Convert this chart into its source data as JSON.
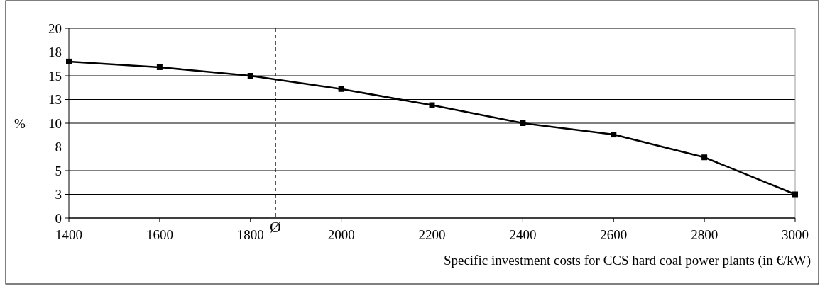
{
  "chart_data": {
    "type": "line",
    "xlabel": "Specific investment costs for CCS hard coal power plants (in €/kW)",
    "ylabel": "%",
    "x": [
      1400,
      1600,
      1800,
      2000,
      2200,
      2400,
      2600,
      2800,
      3000
    ],
    "series": [
      {
        "color": "#000000",
        "values": [
          16.5,
          15.9,
          15.0,
          13.6,
          11.9,
          10.0,
          8.8,
          6.4,
          2.5
        ]
      }
    ],
    "xlim": [
      1400,
      3000
    ],
    "xticks": [
      1400,
      1600,
      1800,
      2000,
      2200,
      2400,
      2600,
      2800,
      3000
    ],
    "ylim": [
      0,
      20
    ],
    "yticks": [
      0,
      {
        "value": 2.5,
        "label": "3"
      },
      5,
      {
        "value": 7.5,
        "label": "8"
      },
      10,
      {
        "value": 12.5,
        "label": "13"
      },
      15,
      {
        "value": 17.5,
        "label": "18"
      },
      20
    ],
    "grid": "y",
    "marker": "square",
    "line_style": "solid",
    "ref_lines": [
      {
        "axis": "x",
        "value": 1855,
        "label": "Ø",
        "line_style": "dashed",
        "color": "#000000"
      }
    ]
  }
}
